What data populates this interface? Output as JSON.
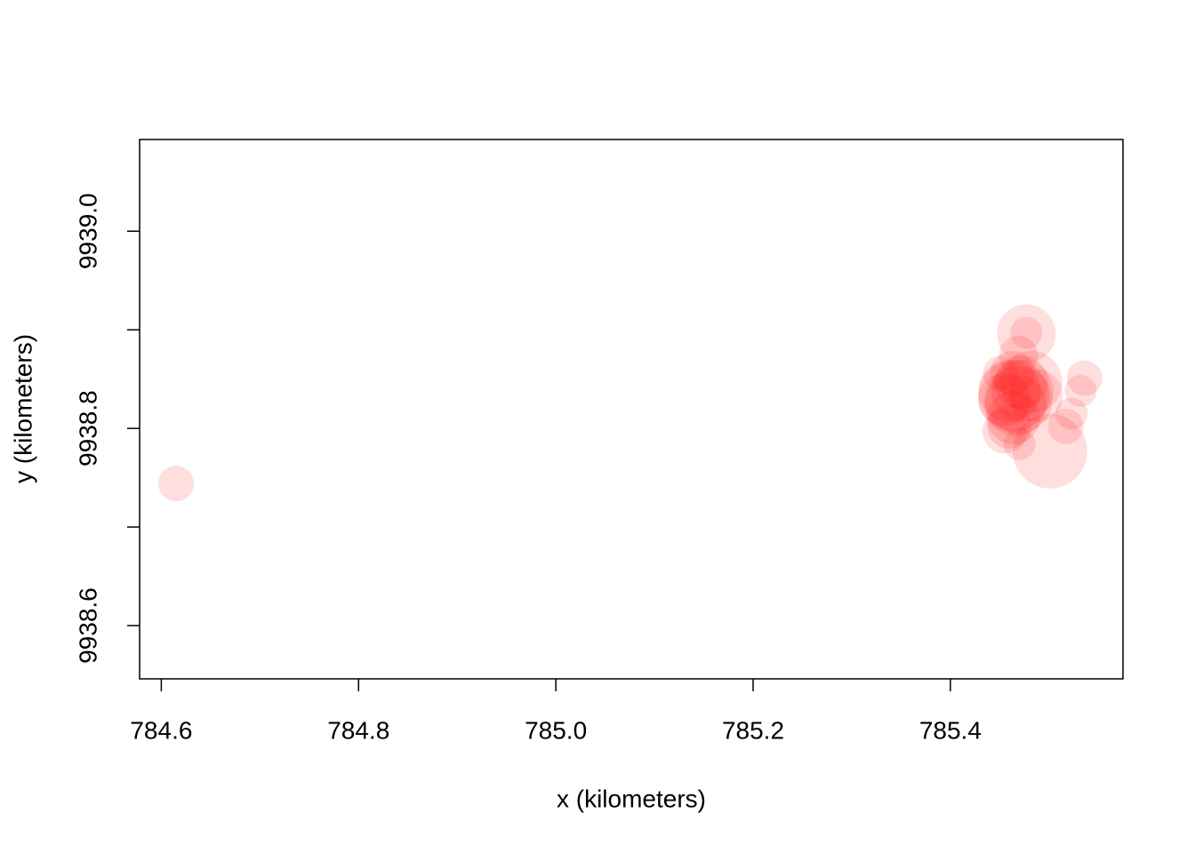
{
  "chart_data": {
    "type": "scatter",
    "x_label": "x (kilometers)",
    "y_label": "y (kilometers)",
    "color": "rgba(255,0,0,0.13)",
    "xlim": [
      784.578,
      785.575
    ],
    "ylim": [
      9938.546,
      9939.093
    ],
    "xticks": [
      784.6,
      784.8,
      {
        "value": 785,
        "label": "785.0"
      },
      785.2,
      785.4
    ],
    "yticks": [
      9938.6,
      {
        "value": 9938.7,
        "label": null
      },
      9938.8,
      {
        "value": 9938.9,
        "label": null
      },
      {
        "value": 9939,
        "label": "9939.0"
      }
    ],
    "x": [
      784.615,
      785.501,
      785.477,
      785.477,
      785.536,
      785.532,
      785.517,
      785.523,
      785.47,
      785.46,
      785.464,
      785.469,
      785.46,
      785.473,
      785.466,
      785.455,
      785.472,
      785.463,
      785.469,
      785.482,
      785.451,
      785.464,
      785.455,
      785.487
    ],
    "y": [
      9938.744,
      9938.777,
      9938.896,
      9938.897,
      9938.851,
      9938.838,
      9938.802,
      9938.815,
      9938.784,
      9938.802,
      9938.833,
      9938.829,
      9938.838,
      9938.838,
      9938.824,
      9938.829,
      9938.847,
      9938.856,
      9938.874,
      9938.847,
      9938.856,
      9938.811,
      9938.797,
      9938.833
    ],
    "sizes": [
      20,
      42,
      33,
      18,
      20,
      18,
      20,
      18,
      18,
      25,
      40,
      38,
      35,
      35,
      35,
      30,
      30,
      25,
      22,
      35,
      20,
      30,
      25,
      30
    ]
  }
}
